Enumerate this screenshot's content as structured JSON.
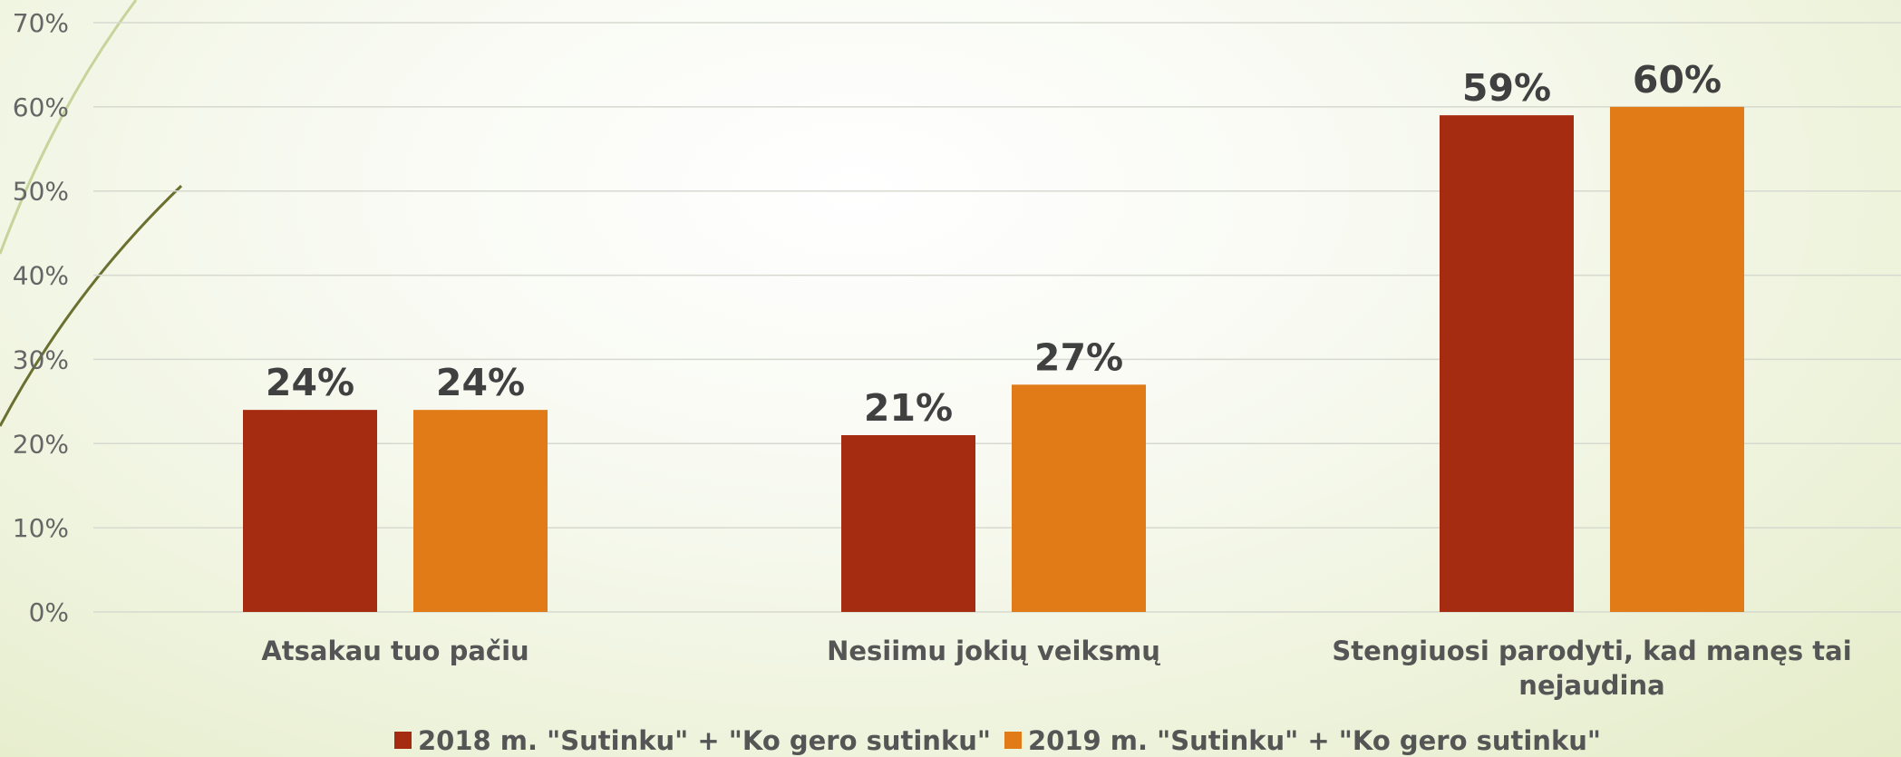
{
  "chart_data": {
    "type": "bar",
    "categories": [
      "Atsakau tuo pačiu",
      "Nesiimu jokių veiksmų",
      "Stengiuosi parodyti, kad manęs tai nejaudina"
    ],
    "series": [
      {
        "name": "2018 m. \"Sutinku\" + \"Ko gero sutinku\"",
        "values": [
          24,
          21,
          59
        ],
        "labels": [
          "24%",
          "21%",
          "59%"
        ],
        "color": "#a52c10"
      },
      {
        "name": "2019 m. \"Sutinku\" + \"Ko gero sutinku\"",
        "values": [
          24,
          27,
          60
        ],
        "labels": [
          "24%",
          "27%",
          "60%"
        ],
        "color": "#e07b18"
      }
    ],
    "y_ticks": [
      "0%",
      "10%",
      "20%",
      "30%",
      "40%",
      "50%",
      "60%",
      "70%"
    ],
    "ylim": [
      0,
      70
    ],
    "grid": true,
    "legend": "bottom"
  }
}
